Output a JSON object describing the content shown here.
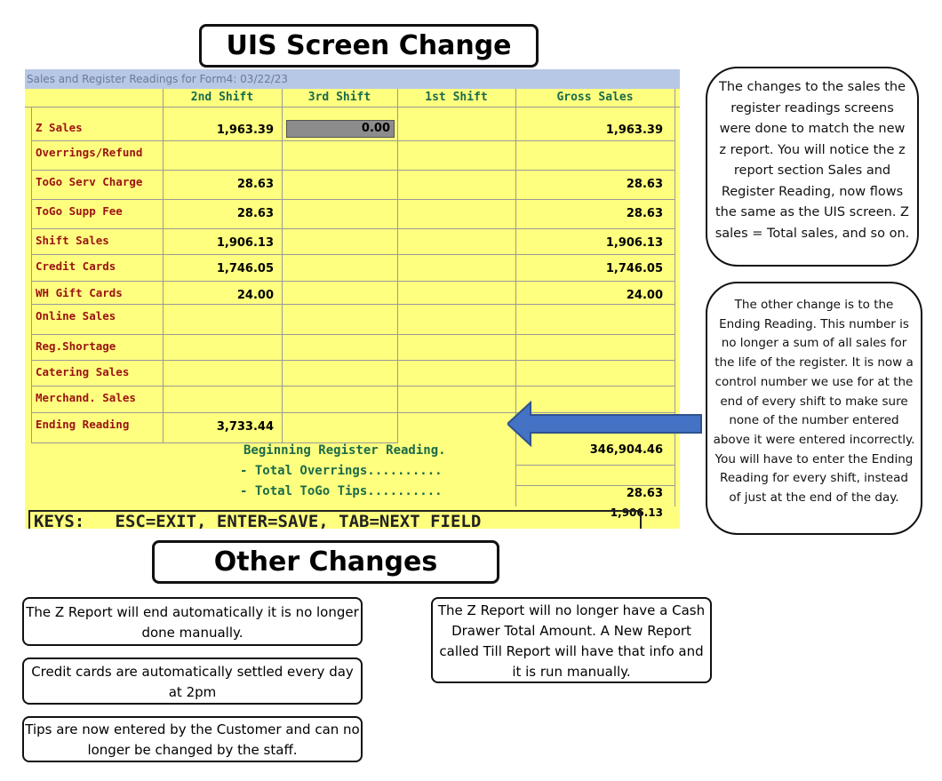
{
  "titles": {
    "uis": "UIS Screen Change",
    "other": "Other Changes"
  },
  "screen": {
    "window_title": "Sales and Register Readings for Form4: 03/22/23",
    "columns": [
      "2nd Shift",
      "3rd Shift",
      "1st Shift",
      "Gross Sales"
    ],
    "rows": [
      {
        "label": "Z Sales",
        "shift2": "1,963.39",
        "shift3": "0.00",
        "shift1": "",
        "gross": "1,963.39"
      },
      {
        "label": "Overrings/Refund",
        "shift2": "",
        "shift3": "",
        "shift1": "",
        "gross": ""
      },
      {
        "label": "ToGo Serv Charge",
        "shift2": "28.63",
        "shift3": "",
        "shift1": "",
        "gross": "28.63"
      },
      {
        "label": "ToGo Supp Fee",
        "shift2": "28.63",
        "shift3": "",
        "shift1": "",
        "gross": "28.63"
      },
      {
        "label": "Shift Sales",
        "shift2": "1,906.13",
        "shift3": "",
        "shift1": "",
        "gross": "1,906.13"
      },
      {
        "label": "Credit Cards",
        "shift2": "1,746.05",
        "shift3": "",
        "shift1": "",
        "gross": "1,746.05"
      },
      {
        "label": "WH Gift Cards",
        "shift2": "24.00",
        "shift3": "",
        "shift1": "",
        "gross": "24.00"
      },
      {
        "label": "Online Sales",
        "shift2": "",
        "shift3": "",
        "shift1": "",
        "gross": ""
      },
      {
        "label": "Reg.Shortage",
        "shift2": "",
        "shift3": "",
        "shift1": "",
        "gross": ""
      },
      {
        "label": "Catering Sales",
        "shift2": "",
        "shift3": "",
        "shift1": "",
        "gross": ""
      },
      {
        "label": "Merchand. Sales",
        "shift2": "",
        "shift3": "",
        "shift1": "",
        "gross": ""
      },
      {
        "label": "Ending Reading",
        "shift2": "3,733.44",
        "shift3": "",
        "shift1": "",
        "gross": ""
      }
    ],
    "summary": {
      "beginning_label": "Beginning Register Reading.",
      "beginning_value": "346,904.46",
      "overrings_label": "- Total Overrings..........",
      "overrings_value": "",
      "tips_label": "- Total ToGo Tips..........",
      "tips_value": "28.63",
      "last_value": "1,906.13"
    },
    "keys_bar": "KEYS:   ESC=EXIT, ENTER=SAVE, TAB=NEXT FIELD"
  },
  "notes": {
    "screen_change": "The changes to the sales the register readings screens were done to match the new z report.  You will notice the z report section Sales and Register Reading, now flows the same as the UIS screen.  Z sales = Total sales, and so on.",
    "ending_reading": "The other change is  to the Ending Reading.  This number is no longer a sum of all sales for the life of the register.  It is now a control number we use for at the end of every shift to make sure none of the number entered above it were entered incorrectly.  You will have to enter the Ending Reading for every shift, instead of just at the end of the day."
  },
  "other_changes": [
    "The Z Report will end automatically it is no longer done manually.",
    "Credit cards are automatically settled every day at 2pm",
    "Tips are now entered by the Customer and can no longer be changed by the staff.",
    "The Z Report will no longer have a Cash Drawer Total Amount.  A New Report called Till Report will have  that info and it is run manually."
  ],
  "colors": {
    "screen_bg": "#ffff7f",
    "label_red": "#9b1313",
    "header_green": "#1a6b4a",
    "arrow_blue": "#4472c4"
  }
}
